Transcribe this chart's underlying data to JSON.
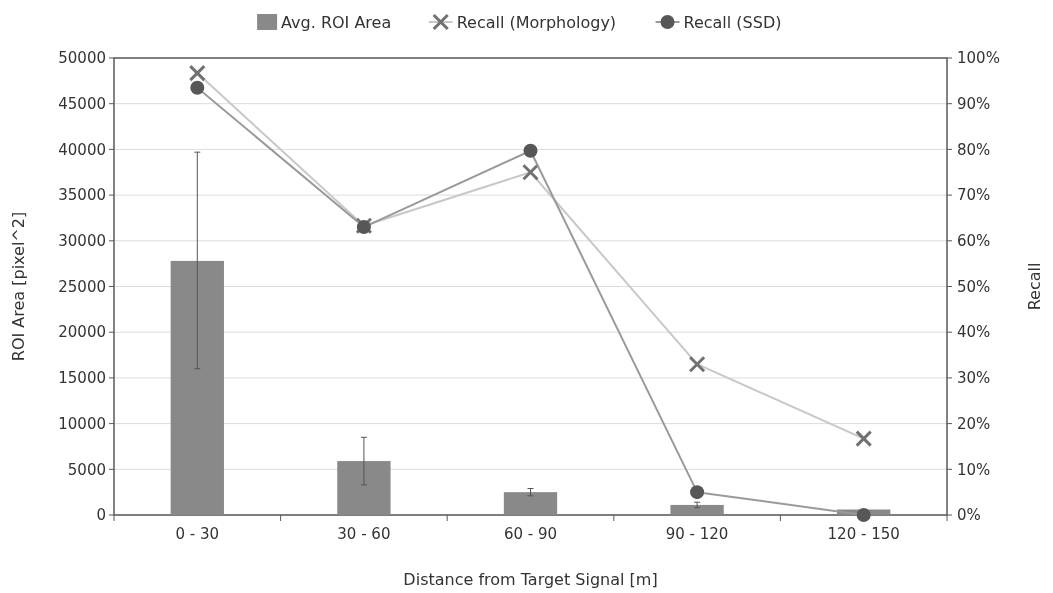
{
  "chart_data": {
    "type": "bar",
    "categories": [
      "0 - 30",
      "30 - 60",
      "60 - 90",
      "90 - 120",
      "120 - 150"
    ],
    "xlabel": "Distance from Target Signal [m]",
    "ylabel": "ROI Area [pixel^2]",
    "y2label": "Recall",
    "ylim": [
      0,
      50000
    ],
    "yticks": [
      0,
      5000,
      10000,
      15000,
      20000,
      25000,
      30000,
      35000,
      40000,
      45000,
      50000
    ],
    "y2lim": [
      0,
      100
    ],
    "y2ticks": [
      {
        "value": 0,
        "label": "0%"
      },
      {
        "value": 10,
        "label": "10%"
      },
      {
        "value": 20,
        "label": "20%"
      },
      {
        "value": 30,
        "label": "30%"
      },
      {
        "value": 40,
        "label": "40%"
      },
      {
        "value": 50,
        "label": "50%"
      },
      {
        "value": 60,
        "label": "60%"
      },
      {
        "value": 70,
        "label": "70%"
      },
      {
        "value": 80,
        "label": "80%"
      },
      {
        "value": 90,
        "label": "90%"
      },
      {
        "value": 100,
        "label": "100%"
      }
    ],
    "grid": "y",
    "legend": "top",
    "series": [
      {
        "name": "Avg. ROI Area",
        "color": "#898989",
        "values": [
          27800,
          5900,
          2500,
          1100,
          600
        ],
        "errors": [
          [
            16000,
            39700
          ],
          [
            3300,
            8500
          ],
          [
            2100,
            2900
          ],
          [
            800,
            1400
          ],
          null
        ]
      },
      {
        "name": "Recall (Morphology)",
        "type": "line",
        "axis": "y2",
        "marker": "cross",
        "color": "#c8c8c8",
        "values": [
          96.7,
          63.3,
          75,
          33,
          16.7
        ]
      },
      {
        "name": "Recall (SSD)",
        "type": "line",
        "axis": "y2",
        "marker": "circle",
        "color": "#9a9a9a",
        "values": [
          93.5,
          63,
          79.7,
          5,
          0
        ]
      }
    ]
  }
}
